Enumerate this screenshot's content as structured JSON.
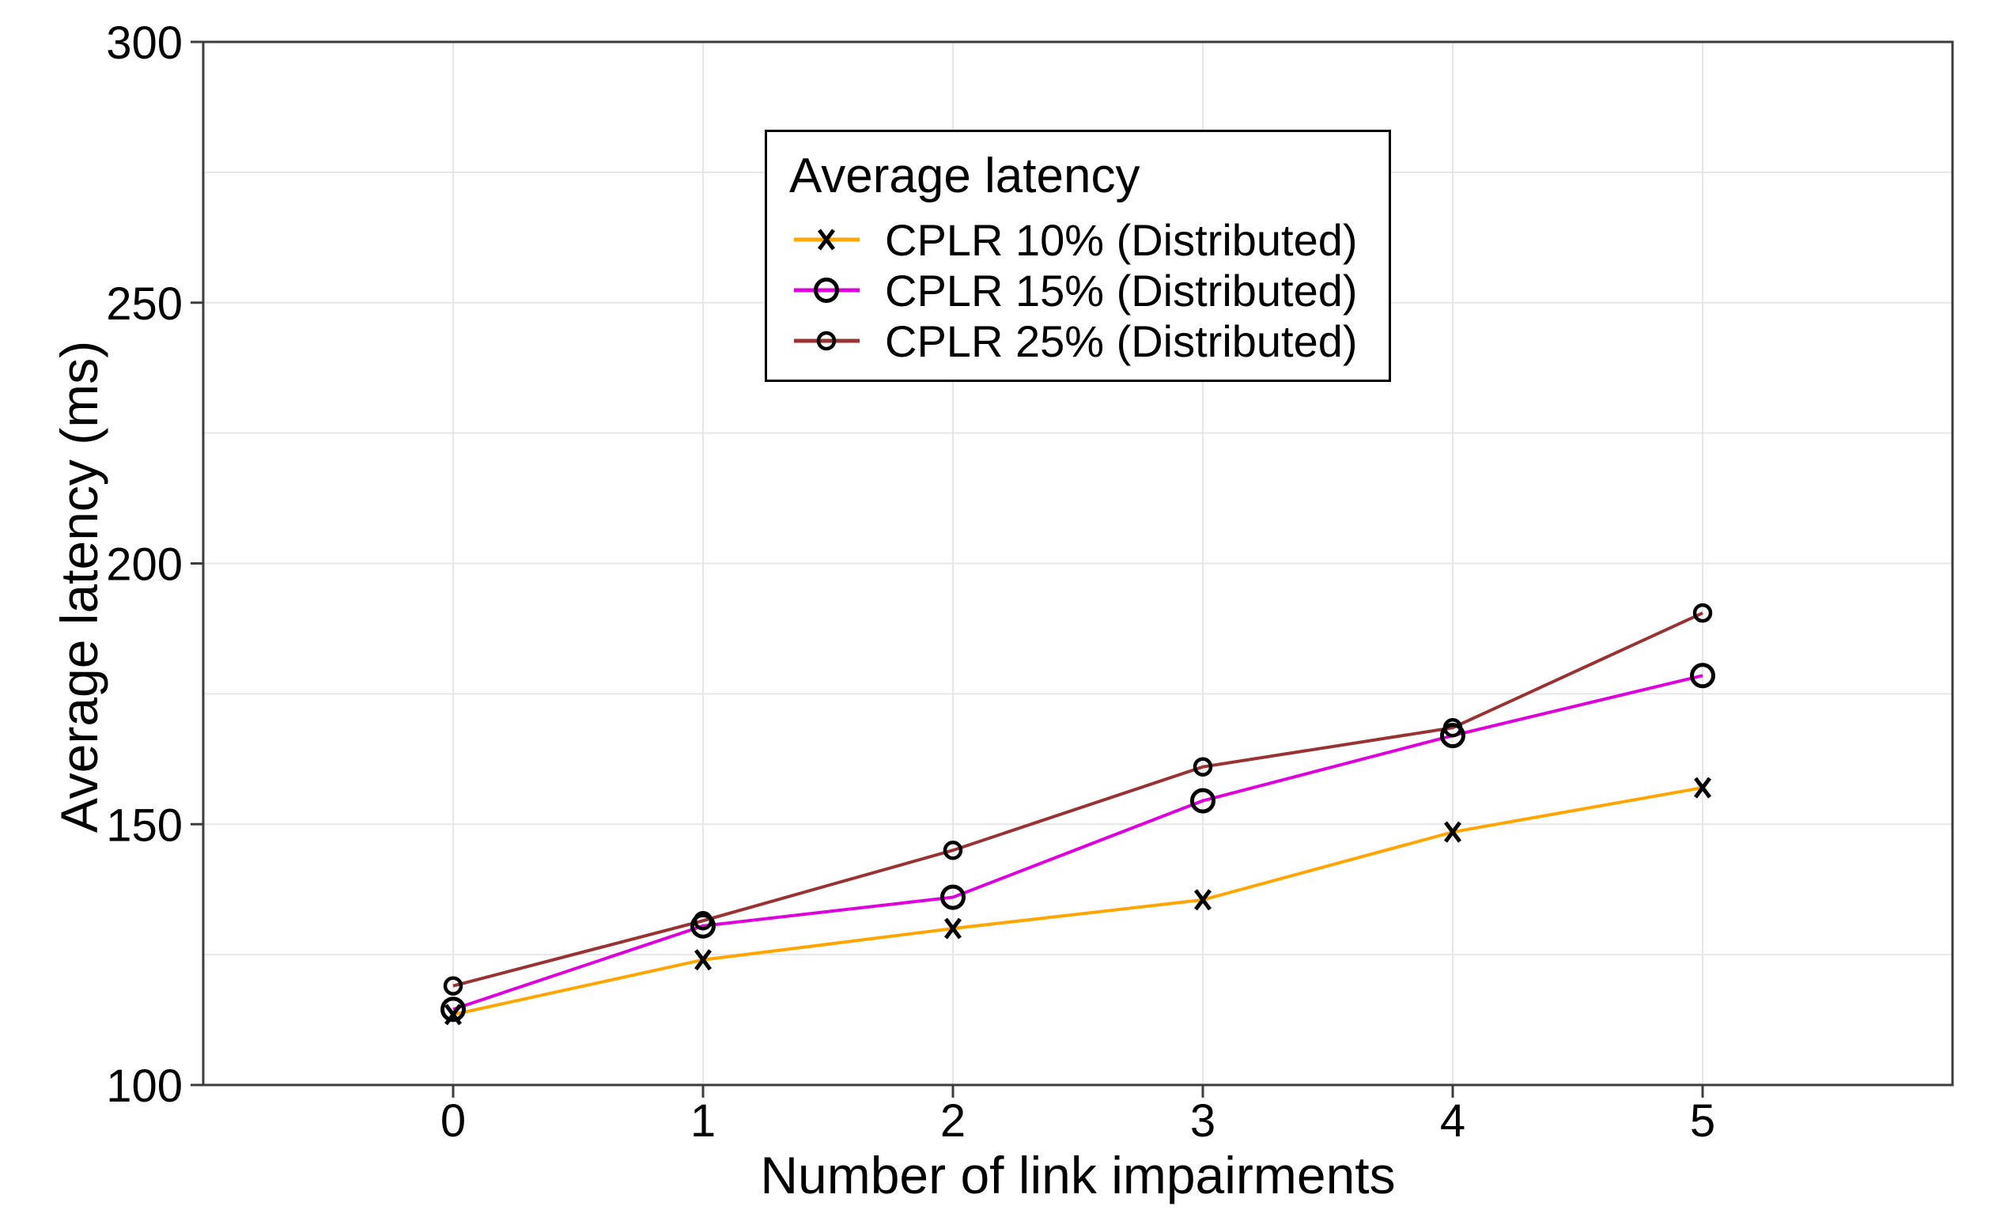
{
  "chart_data": {
    "type": "line",
    "title": "",
    "xlabel": "Number of link impairments",
    "ylabel": "Average latency (ms)",
    "x": [
      0,
      1,
      2,
      3,
      4,
      5
    ],
    "xticks": [
      0,
      1,
      2,
      3,
      4,
      5
    ],
    "yticks": [
      100,
      150,
      200,
      250,
      300
    ],
    "xlim": [
      -1,
      6
    ],
    "ylim": [
      100,
      300
    ],
    "y_minor_step": 25,
    "grid": true,
    "axis_color": "#3C3C3C",
    "grid_color": "#E6E6E6",
    "text_color": "#000000",
    "marker_color": "#000000",
    "legend": {
      "title": "Average latency",
      "position": "top-center-inside"
    },
    "series": [
      {
        "name": "CPLR 10% (Distributed)",
        "color": "#FFA500",
        "marker": "x",
        "values": [
          113.5,
          124,
          130,
          135.5,
          148.5,
          157
        ]
      },
      {
        "name": "CPLR 15% (Distributed)",
        "color": "#DD00DD",
        "marker": "circle-large",
        "values": [
          114.5,
          130.5,
          136,
          154.5,
          167,
          178.5
        ]
      },
      {
        "name": "CPLR 25% (Distributed)",
        "color": "#993333",
        "marker": "circle-small",
        "values": [
          119,
          131.5,
          145,
          161,
          168.5,
          190.5
        ]
      }
    ]
  }
}
